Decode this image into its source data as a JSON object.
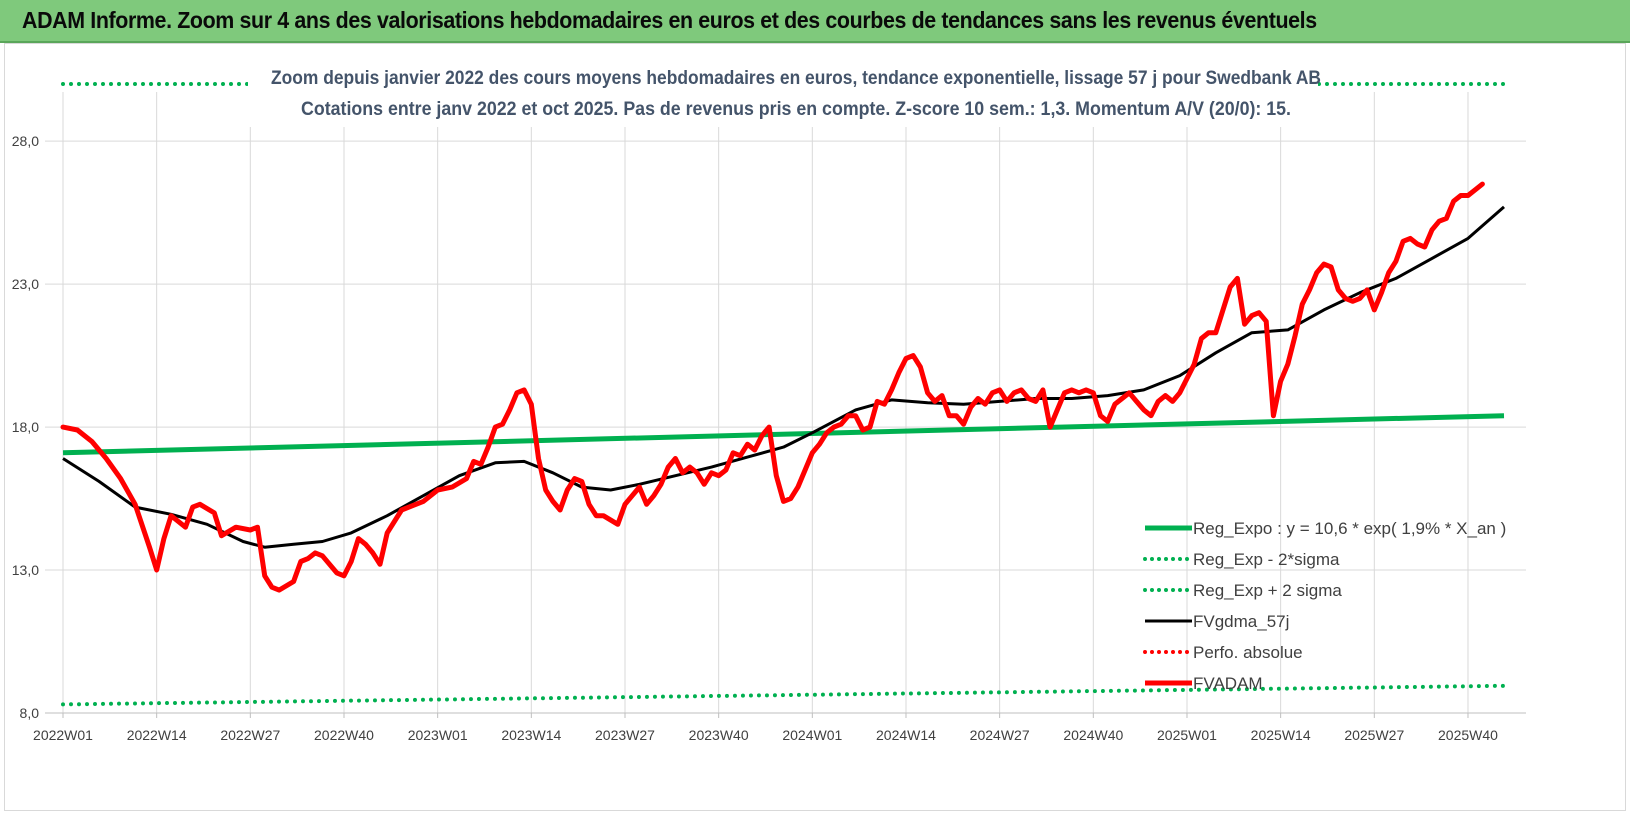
{
  "header": {
    "title": "ADAM Informe. Zoom sur 4 ans des valorisations hebdomadaires en euros et des courbes de tendances sans les revenus éventuels"
  },
  "colors": {
    "header_bg": "#7fc97c",
    "reg_expo": "#00b050",
    "sigma_bands": "#00b050",
    "fvgdma": "#000000",
    "perfo_absolue": "#ff0000",
    "fvadam": "#ff0000",
    "grid": "#d9d9d9",
    "subtitle": "#44546a"
  },
  "chart_data": {
    "type": "line",
    "title_line1": "Zoom depuis janvier 2022 des cours moyens hebdomadaires en euros, tendance exponentielle, lissage 57 j pour Swedbank AB",
    "title_line2": "Cotations entre janv 2022 et oct 2025. Pas de revenus pris en compte. Z-score 10 sem.: 1,3. Momentum A/V (20/0): 15.",
    "ylim": [
      8,
      30
    ],
    "y_ticks": [
      "8,0",
      "13,0",
      "18,0",
      "23,0",
      "28,0"
    ],
    "y_tick_values": [
      8,
      13,
      18,
      23,
      28
    ],
    "x_ticks": [
      "2022W01",
      "2022W14",
      "2022W27",
      "2022W40",
      "2023W01",
      "2023W14",
      "2023W27",
      "2023W40",
      "2024W01",
      "2024W14",
      "2024W27",
      "2024W40",
      "2025W01",
      "2025W14",
      "2025W27",
      "2025W40"
    ],
    "x_tick_weeks": [
      0,
      13,
      26,
      39,
      52,
      65,
      78,
      91,
      104,
      117,
      130,
      143,
      156,
      169,
      182,
      195
    ],
    "n_weeks": 201,
    "legend": {
      "placement": "bottom-right",
      "entries": [
        {
          "name": "Reg_Expo : y = 10,6 * exp( 1,9% * X_an )",
          "style": "solid-thick",
          "color": "#00b050"
        },
        {
          "name": "Reg_Exp - 2*sigma",
          "style": "dotted",
          "color": "#00b050"
        },
        {
          "name": "Reg_Exp + 2 sigma",
          "style": "dotted",
          "color": "#00b050"
        },
        {
          "name": "FVgdma_57j",
          "style": "solid",
          "color": "#000000"
        },
        {
          "name": "Perfo. absolue",
          "style": "dotted",
          "color": "#ff0000"
        },
        {
          "name": "FVADAM",
          "style": "solid-thick",
          "color": "#ff0000"
        }
      ]
    },
    "series": [
      {
        "name": "Reg_Expo",
        "points": [
          [
            0,
            17.1
          ],
          [
            200,
            18.4
          ]
        ]
      },
      {
        "name": "Reg_Exp - 2*sigma",
        "points": [
          [
            0,
            8.3
          ],
          [
            200,
            8.95
          ]
        ]
      },
      {
        "name": "Reg_Exp + 2 sigma",
        "points": [
          [
            0,
            30.0
          ],
          [
            200,
            30.0
          ]
        ]
      },
      {
        "name": "FVgdma_57j",
        "points": [
          [
            0,
            16.9
          ],
          [
            5,
            16.1
          ],
          [
            10,
            15.2
          ],
          [
            15,
            14.95
          ],
          [
            20,
            14.6
          ],
          [
            25,
            14.0
          ],
          [
            28,
            13.8
          ],
          [
            32,
            13.9
          ],
          [
            36,
            14.0
          ],
          [
            40,
            14.3
          ],
          [
            45,
            14.9
          ],
          [
            50,
            15.6
          ],
          [
            55,
            16.3
          ],
          [
            60,
            16.75
          ],
          [
            64,
            16.8
          ],
          [
            68,
            16.4
          ],
          [
            72,
            15.9
          ],
          [
            76,
            15.8
          ],
          [
            80,
            16.0
          ],
          [
            85,
            16.3
          ],
          [
            90,
            16.6
          ],
          [
            95,
            16.95
          ],
          [
            100,
            17.3
          ],
          [
            104,
            17.8
          ],
          [
            110,
            18.6
          ],
          [
            115,
            18.95
          ],
          [
            120,
            18.85
          ],
          [
            125,
            18.8
          ],
          [
            130,
            18.9
          ],
          [
            135,
            19.0
          ],
          [
            140,
            19.0
          ],
          [
            145,
            19.1
          ],
          [
            150,
            19.3
          ],
          [
            155,
            19.8
          ],
          [
            160,
            20.6
          ],
          [
            165,
            21.3
          ],
          [
            170,
            21.4
          ],
          [
            175,
            22.1
          ],
          [
            180,
            22.7
          ],
          [
            185,
            23.2
          ],
          [
            190,
            23.9
          ],
          [
            195,
            24.6
          ],
          [
            200,
            25.7
          ]
        ]
      },
      {
        "name": "FVADAM",
        "points": [
          [
            0,
            18.0
          ],
          [
            2,
            17.9
          ],
          [
            4,
            17.5
          ],
          [
            6,
            16.9
          ],
          [
            8,
            16.2
          ],
          [
            10,
            15.3
          ],
          [
            12,
            13.8
          ],
          [
            13,
            13.0
          ],
          [
            14,
            14.1
          ],
          [
            15,
            14.9
          ],
          [
            17,
            14.5
          ],
          [
            18,
            15.2
          ],
          [
            19,
            15.3
          ],
          [
            21,
            15.0
          ],
          [
            22,
            14.2
          ],
          [
            24,
            14.5
          ],
          [
            26,
            14.4
          ],
          [
            27,
            14.5
          ],
          [
            28,
            12.8
          ],
          [
            29,
            12.4
          ],
          [
            30,
            12.3
          ],
          [
            32,
            12.6
          ],
          [
            33,
            13.3
          ],
          [
            34,
            13.4
          ],
          [
            35,
            13.6
          ],
          [
            36,
            13.5
          ],
          [
            38,
            12.9
          ],
          [
            39,
            12.8
          ],
          [
            40,
            13.3
          ],
          [
            41,
            14.1
          ],
          [
            42,
            13.9
          ],
          [
            43,
            13.6
          ],
          [
            44,
            13.2
          ],
          [
            45,
            14.3
          ],
          [
            47,
            15.1
          ],
          [
            49,
            15.3
          ],
          [
            50,
            15.4
          ],
          [
            52,
            15.8
          ],
          [
            54,
            15.9
          ],
          [
            56,
            16.2
          ],
          [
            57,
            16.8
          ],
          [
            58,
            16.7
          ],
          [
            59,
            17.3
          ],
          [
            60,
            18.0
          ],
          [
            61,
            18.1
          ],
          [
            62,
            18.6
          ],
          [
            63,
            19.2
          ],
          [
            64,
            19.3
          ],
          [
            65,
            18.8
          ],
          [
            66,
            16.9
          ],
          [
            67,
            15.8
          ],
          [
            68,
            15.4
          ],
          [
            69,
            15.1
          ],
          [
            70,
            15.8
          ],
          [
            71,
            16.2
          ],
          [
            72,
            16.1
          ],
          [
            73,
            15.3
          ],
          [
            74,
            14.9
          ],
          [
            75,
            14.9
          ],
          [
            77,
            14.6
          ],
          [
            78,
            15.3
          ],
          [
            79,
            15.6
          ],
          [
            80,
            15.9
          ],
          [
            81,
            15.3
          ],
          [
            82,
            15.6
          ],
          [
            83,
            16.0
          ],
          [
            84,
            16.6
          ],
          [
            85,
            16.9
          ],
          [
            86,
            16.4
          ],
          [
            87,
            16.6
          ],
          [
            88,
            16.4
          ],
          [
            89,
            16.0
          ],
          [
            90,
            16.4
          ],
          [
            91,
            16.3
          ],
          [
            92,
            16.5
          ],
          [
            93,
            17.1
          ],
          [
            94,
            17.0
          ],
          [
            95,
            17.4
          ],
          [
            96,
            17.2
          ],
          [
            97,
            17.7
          ],
          [
            98,
            18.0
          ],
          [
            99,
            16.3
          ],
          [
            100,
            15.4
          ],
          [
            101,
            15.5
          ],
          [
            102,
            15.9
          ],
          [
            103,
            16.5
          ],
          [
            104,
            17.1
          ],
          [
            105,
            17.4
          ],
          [
            106,
            17.8
          ],
          [
            107,
            18.0
          ],
          [
            108,
            18.1
          ],
          [
            109,
            18.4
          ],
          [
            110,
            18.4
          ],
          [
            111,
            17.9
          ],
          [
            112,
            18.0
          ],
          [
            113,
            18.9
          ],
          [
            114,
            18.8
          ],
          [
            115,
            19.3
          ],
          [
            116,
            19.9
          ],
          [
            117,
            20.4
          ],
          [
            118,
            20.5
          ],
          [
            119,
            20.1
          ],
          [
            120,
            19.2
          ],
          [
            121,
            18.9
          ],
          [
            122,
            19.1
          ],
          [
            123,
            18.4
          ],
          [
            124,
            18.4
          ],
          [
            125,
            18.1
          ],
          [
            126,
            18.7
          ],
          [
            127,
            19.0
          ],
          [
            128,
            18.8
          ],
          [
            129,
            19.2
          ],
          [
            130,
            19.3
          ],
          [
            131,
            18.9
          ],
          [
            132,
            19.2
          ],
          [
            133,
            19.3
          ],
          [
            134,
            19.0
          ],
          [
            135,
            18.9
          ],
          [
            136,
            19.3
          ],
          [
            137,
            18.0
          ],
          [
            138,
            18.6
          ],
          [
            139,
            19.2
          ],
          [
            140,
            19.3
          ],
          [
            141,
            19.2
          ],
          [
            142,
            19.3
          ],
          [
            143,
            19.2
          ],
          [
            144,
            18.4
          ],
          [
            145,
            18.2
          ],
          [
            146,
            18.8
          ],
          [
            147,
            19.0
          ],
          [
            148,
            19.2
          ],
          [
            149,
            18.9
          ],
          [
            150,
            18.6
          ],
          [
            151,
            18.4
          ],
          [
            152,
            18.9
          ],
          [
            153,
            19.1
          ],
          [
            154,
            18.9
          ],
          [
            155,
            19.2
          ],
          [
            156,
            19.7
          ],
          [
            157,
            20.2
          ],
          [
            158,
            21.1
          ],
          [
            159,
            21.3
          ],
          [
            160,
            21.3
          ],
          [
            161,
            22.1
          ],
          [
            162,
            22.9
          ],
          [
            163,
            23.2
          ],
          [
            164,
            21.6
          ],
          [
            165,
            21.9
          ],
          [
            166,
            22.0
          ],
          [
            167,
            21.7
          ],
          [
            168,
            18.4
          ],
          [
            169,
            19.6
          ],
          [
            170,
            20.2
          ],
          [
            171,
            21.2
          ],
          [
            172,
            22.3
          ],
          [
            173,
            22.8
          ],
          [
            174,
            23.4
          ],
          [
            175,
            23.7
          ],
          [
            176,
            23.6
          ],
          [
            177,
            22.8
          ],
          [
            178,
            22.5
          ],
          [
            179,
            22.4
          ],
          [
            180,
            22.5
          ],
          [
            181,
            22.8
          ],
          [
            182,
            22.1
          ],
          [
            183,
            22.7
          ],
          [
            184,
            23.4
          ],
          [
            185,
            23.8
          ],
          [
            186,
            24.5
          ],
          [
            187,
            24.6
          ],
          [
            188,
            24.4
          ],
          [
            189,
            24.3
          ],
          [
            190,
            24.9
          ],
          [
            191,
            25.2
          ],
          [
            192,
            25.3
          ],
          [
            193,
            25.9
          ],
          [
            194,
            26.1
          ],
          [
            195,
            26.1
          ],
          [
            196,
            26.3
          ],
          [
            197,
            26.5
          ]
        ]
      }
    ]
  }
}
